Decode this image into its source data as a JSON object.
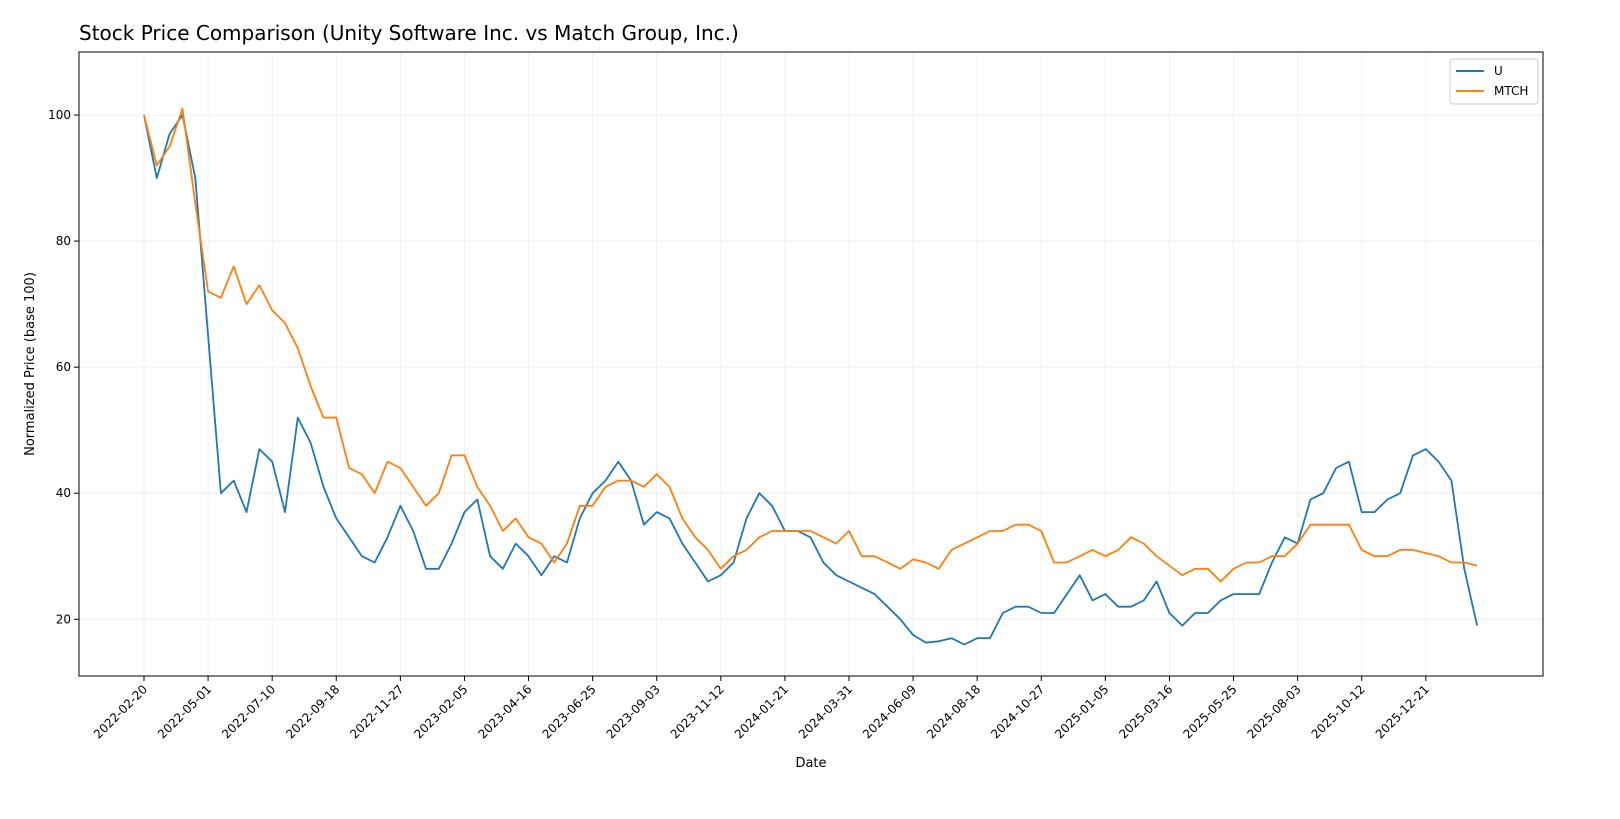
{
  "chart_data": {
    "type": "line",
    "title": "Stock Price Comparison (Unity Software Inc. vs Match Group, Inc.)",
    "xlabel": "Date",
    "ylabel": "Normalized Price (base 100)",
    "x_start": "2022-02-20",
    "x_step_days": 14,
    "xlim": [
      "2021-12-11",
      "2026-04-28"
    ],
    "ylim": [
      11,
      110
    ],
    "grid": true,
    "legend_position": "top-right",
    "x_ticks": [
      "2022-02-20",
      "2022-05-01",
      "2022-07-10",
      "2022-09-18",
      "2022-11-27",
      "2023-02-05",
      "2023-04-16",
      "2023-06-25",
      "2023-09-03",
      "2023-11-12",
      "2024-01-21",
      "2024-03-31",
      "2024-06-09",
      "2024-08-18",
      "2024-10-27",
      "2025-01-05",
      "2025-03-16",
      "2025-05-25",
      "2025-08-03",
      "2025-10-12",
      "2025-12-21"
    ],
    "y_ticks": [
      20,
      40,
      60,
      80,
      100
    ],
    "series": [
      {
        "name": "U",
        "color": "#1f77b4",
        "values": [
          100,
          90,
          97,
          100,
          90,
          65,
          40,
          42,
          37,
          47,
          45,
          37,
          52,
          48,
          41,
          36,
          33,
          30,
          29,
          33,
          38,
          34,
          28,
          28,
          32,
          37,
          39,
          30,
          28,
          32,
          30,
          27,
          30,
          29,
          36,
          40,
          42,
          45,
          42,
          35,
          37,
          36,
          32,
          29,
          26,
          27,
          29,
          36,
          40,
          38,
          34,
          34,
          33,
          29,
          27,
          26,
          25,
          24,
          22,
          20,
          17.5,
          16.3,
          16.5,
          17,
          16,
          17,
          17,
          21,
          22,
          22,
          21,
          21,
          24,
          27,
          23,
          24,
          22,
          22,
          23,
          26,
          21,
          19,
          21,
          21,
          23,
          24,
          24,
          24,
          29,
          33,
          32,
          39,
          40,
          44,
          45,
          37,
          37,
          39,
          40,
          46,
          47,
          45,
          42,
          28,
          19
        ]
      },
      {
        "name": "MTCH",
        "color": "#ff7f0e",
        "values": [
          100,
          92,
          95,
          101,
          86,
          72,
          71,
          76,
          70,
          73,
          69,
          67,
          63,
          57,
          52,
          52,
          44,
          43,
          40,
          45,
          44,
          41,
          38,
          40,
          46,
          46,
          41,
          38,
          34,
          36,
          33,
          32,
          29,
          32,
          38,
          38,
          41,
          42,
          42,
          41,
          43,
          41,
          36,
          33,
          31,
          28,
          30,
          31,
          33,
          34,
          34,
          34,
          34,
          33,
          32,
          34,
          30,
          30,
          29,
          28,
          29.5,
          29,
          28,
          31,
          32,
          33,
          34,
          34,
          35,
          35,
          34,
          29,
          29,
          30,
          31,
          30,
          31,
          33,
          32,
          30,
          28.5,
          27,
          28,
          28,
          26,
          28,
          29,
          29,
          30,
          30,
          32,
          35,
          35,
          35,
          35,
          31,
          30,
          30,
          31,
          31,
          30.5,
          30,
          29,
          29,
          28.5
        ]
      }
    ]
  }
}
